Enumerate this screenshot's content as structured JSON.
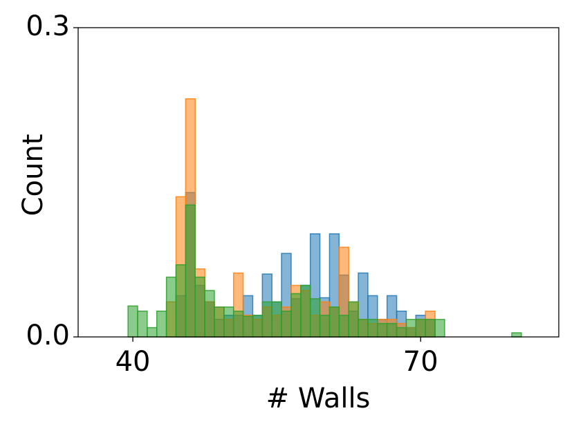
{
  "chart_data": {
    "type": "histogram",
    "xlabel": "# Walls",
    "ylabel": "Count",
    "bins": [
      39.5,
      40.5,
      41.5,
      42.5,
      43.5,
      44.5,
      45.5,
      46.5,
      47.5,
      48.5,
      49.5,
      50.5,
      51.5,
      52.5,
      53.5,
      54.5,
      55.5,
      56.5,
      57.5,
      58.5,
      59.5,
      60.5,
      61.5,
      62.5,
      63.5,
      64.5,
      65.5,
      66.5,
      67.5,
      68.5,
      69.5,
      70.5,
      71.5,
      72.5,
      73.5,
      74.5,
      75.5,
      76.5,
      77.5,
      78.5,
      79.5,
      80.5
    ],
    "series": [
      {
        "color": "#1f77b4",
        "values": [
          0,
          0,
          0,
          0,
          0,
          0.04,
          0.14,
          0.05,
          0.034,
          0.017,
          0.021,
          0.021,
          0.04,
          0.021,
          0.061,
          0.034,
          0.081,
          0.037,
          0.05,
          0.1,
          0.038,
          0.1,
          0.06,
          0.025,
          0.062,
          0.04,
          0.017,
          0.04,
          0.025,
          0.009,
          0.021,
          0.017,
          0,
          0,
          0,
          0,
          0,
          0,
          0,
          0,
          0
        ]
      },
      {
        "color": "#ff7f0e",
        "values": [
          0,
          0,
          0,
          0,
          0.034,
          0.136,
          0.231,
          0.066,
          0.034,
          0.029,
          0.017,
          0.062,
          0.021,
          0.017,
          0.029,
          0.021,
          0.029,
          0.05,
          0.045,
          0.021,
          0.034,
          0.029,
          0.087,
          0.034,
          0.017,
          0.013,
          0.017,
          0.017,
          0.013,
          0.009,
          0.017,
          0.025,
          0,
          0,
          0,
          0,
          0,
          0,
          0,
          0,
          0
        ]
      },
      {
        "color": "#2ca02c",
        "values": [
          0.03,
          0.025,
          0.009,
          0.025,
          0.058,
          0.07,
          0.128,
          0.058,
          0.045,
          0.029,
          0.029,
          0.025,
          0.02,
          0.021,
          0.034,
          0.034,
          0.025,
          0.042,
          0.05,
          0.037,
          0.021,
          0.029,
          0.021,
          0.034,
          0.017,
          0.017,
          0.013,
          0.013,
          0.009,
          0.017,
          0.017,
          0.017,
          0.017,
          0,
          0,
          0,
          0,
          0,
          0,
          0,
          0.004
        ]
      }
    ],
    "xlim": [
      34.3,
      84.4
    ],
    "xticks": [
      40,
      70
    ],
    "ylim": [
      0,
      0.3
    ],
    "yticks": [
      {
        "value": 0,
        "label": "0.0"
      },
      0.3
    ]
  }
}
